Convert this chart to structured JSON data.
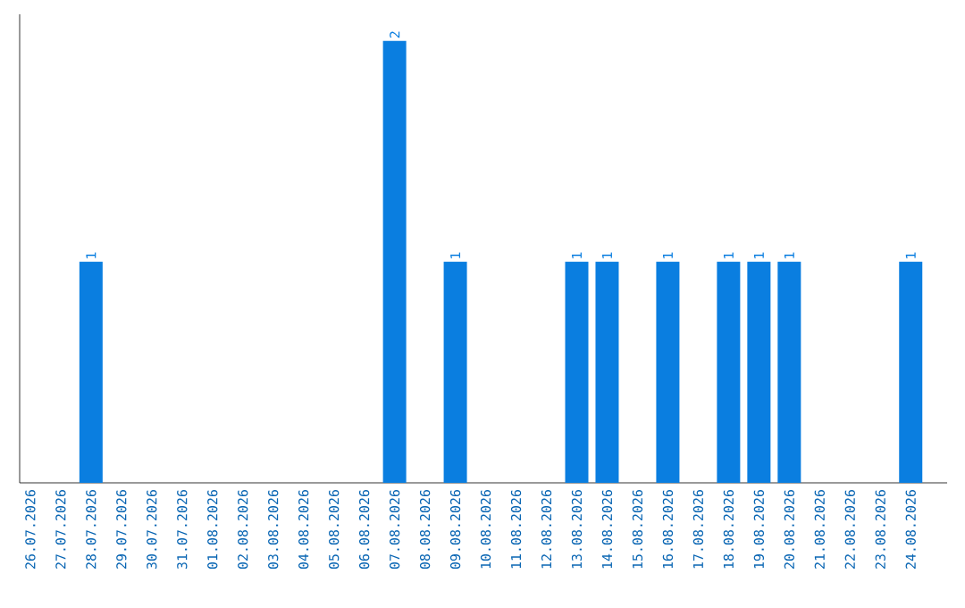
{
  "chart_data": {
    "type": "bar",
    "categories": [
      "26.07.2026",
      "27.07.2026",
      "28.07.2026",
      "29.07.2026",
      "30.07.2026",
      "31.07.2026",
      "01.08.2026",
      "02.08.2026",
      "03.08.2026",
      "04.08.2026",
      "05.08.2026",
      "06.08.2026",
      "07.08.2026",
      "08.08.2026",
      "09.08.2026",
      "10.08.2026",
      "11.08.2026",
      "12.08.2026",
      "13.08.2026",
      "14.08.2026",
      "15.08.2026",
      "16.08.2026",
      "17.08.2026",
      "18.08.2026",
      "19.08.2026",
      "20.08.2026",
      "21.08.2026",
      "22.08.2026",
      "23.08.2026",
      "24.08.2026"
    ],
    "values": [
      0,
      0,
      1,
      0,
      0,
      0,
      0,
      0,
      0,
      0,
      0,
      0,
      2,
      0,
      1,
      0,
      0,
      0,
      1,
      1,
      0,
      1,
      0,
      1,
      1,
      1,
      0,
      0,
      0,
      1
    ],
    "value_labels": [
      null,
      null,
      "1",
      null,
      null,
      null,
      null,
      null,
      null,
      null,
      null,
      null,
      "2",
      null,
      "1",
      null,
      null,
      null,
      "1",
      "1",
      null,
      "1",
      null,
      "1",
      "1",
      "1",
      null,
      null,
      null,
      "1"
    ],
    "color": "#0a7ee0"
  }
}
